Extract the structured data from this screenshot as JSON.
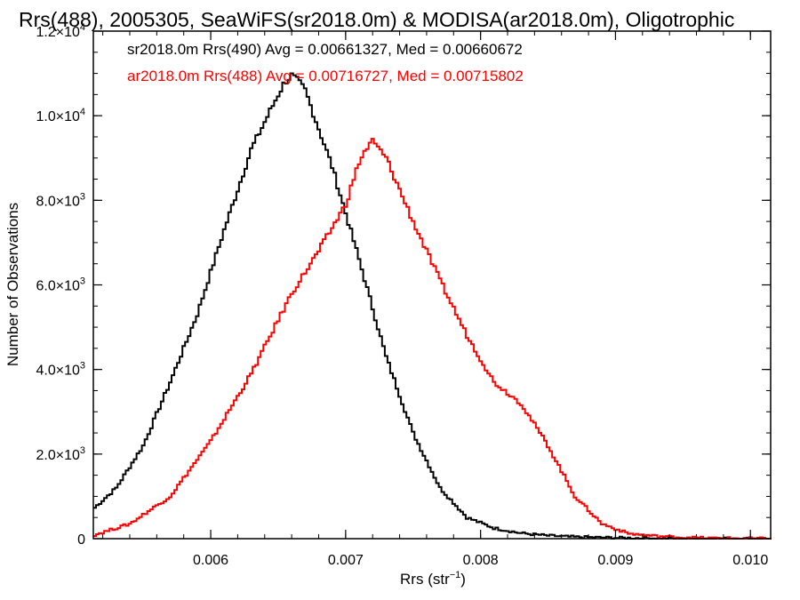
{
  "chart_data": {
    "type": "line",
    "title": "Rrs(488), 2005305, SeaWiFS(sr2018.0m) & MODISA(ar2018.0m), Oligotrophic",
    "xlabel": "Rrs (str",
    "xlabel_sup": "−1",
    "xlabel_end": ")",
    "ylabel": "Number of Observations",
    "xlim": [
      0.00513,
      0.01015
    ],
    "ylim": [
      0,
      12000
    ],
    "x_ticks": [
      {
        "value": 0.006,
        "label": "0.006"
      },
      {
        "value": 0.007,
        "label": "0.007"
      },
      {
        "value": 0.008,
        "label": "0.008"
      },
      {
        "value": 0.009,
        "label": "0.009"
      },
      {
        "value": 0.01,
        "label": "0.010"
      }
    ],
    "y_ticks": [
      {
        "value": 0,
        "base": "0",
        "exp": ""
      },
      {
        "value": 2000,
        "base": "2.0×10",
        "exp": "3"
      },
      {
        "value": 4000,
        "base": "4.0×10",
        "exp": "3"
      },
      {
        "value": 6000,
        "base": "6.0×10",
        "exp": "3"
      },
      {
        "value": 8000,
        "base": "8.0×10",
        "exp": "3"
      },
      {
        "value": 10000,
        "base": "1.0×10",
        "exp": "4"
      },
      {
        "value": 12000,
        "base": "1.2×10",
        "exp": "4"
      }
    ],
    "grid": false,
    "legend_position": "top-left",
    "series": [
      {
        "name": "sr2018.0m Rrs(490) Avg = 0.00661327, Med = 0.00660672",
        "color": "#000000",
        "x": [
          0.00513,
          0.0053,
          0.0055,
          0.0057,
          0.0059,
          0.0061,
          0.0063,
          0.0065,
          0.00655,
          0.0066,
          0.00665,
          0.0067,
          0.0069,
          0.0071,
          0.0073,
          0.0075,
          0.0077,
          0.0079,
          0.0081,
          0.0083,
          0.0085,
          0.0087,
          0.0089,
          0.0091,
          0.0093,
          0.0095,
          0.0097,
          0.0099,
          0.01015
        ],
        "y": [
          700,
          1200,
          2200,
          3700,
          5300,
          7300,
          9200,
          10500,
          10800,
          10950,
          10800,
          10600,
          8800,
          6600,
          4300,
          2500,
          1200,
          500,
          250,
          130,
          70,
          40,
          25,
          15,
          10,
          5,
          3,
          2,
          0
        ]
      },
      {
        "name": "ar2018.0m Rrs(488) Avg = 0.00716727, Med = 0.00715802",
        "color": "#ff0000",
        "x": [
          0.00513,
          0.0054,
          0.0057,
          0.006,
          0.0063,
          0.0066,
          0.0068,
          0.007,
          0.0071,
          0.00715,
          0.0072,
          0.0073,
          0.0075,
          0.0077,
          0.0079,
          0.0081,
          0.0083,
          0.0085,
          0.0087,
          0.0089,
          0.0091,
          0.0093,
          0.0095,
          0.0097,
          0.0099,
          0.01015
        ],
        "y": [
          80,
          350,
          1000,
          2300,
          3900,
          5800,
          6800,
          7900,
          8900,
          9200,
          9400,
          9000,
          7500,
          6100,
          4800,
          3700,
          3200,
          2200,
          1000,
          350,
          120,
          60,
          30,
          15,
          8,
          0
        ]
      }
    ]
  }
}
